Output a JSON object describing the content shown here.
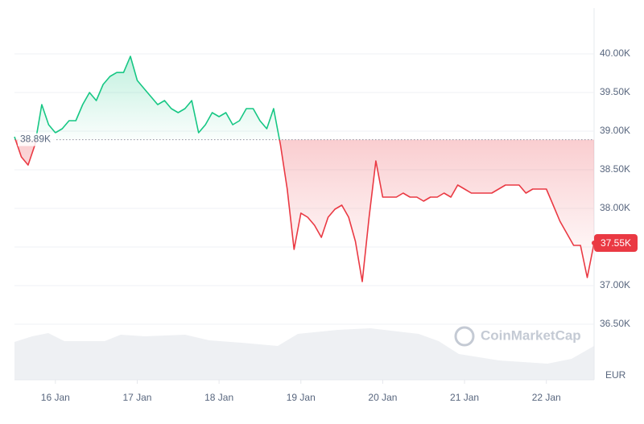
{
  "chart_data": {
    "type": "line",
    "series": [
      {
        "color": "#16c784",
        "color_below": "#ea3943",
        "values": [
          38927,
          38667,
          38562,
          38823,
          39344,
          39083,
          38979,
          39031,
          39135,
          39135,
          39344,
          39500,
          39396,
          39604,
          39708,
          39760,
          39760,
          39969,
          39656,
          39552,
          39448,
          39344,
          39396,
          39292,
          39240,
          39292,
          39396,
          38979,
          39083,
          39240,
          39188,
          39240,
          39083,
          39135,
          39292,
          39292,
          39135,
          39031,
          39292,
          38823,
          38250,
          37469,
          37938,
          37885,
          37781,
          37625,
          37885,
          37990,
          38042,
          37885,
          37573,
          37052,
          37885,
          38615,
          38146,
          38146,
          38146,
          38198,
          38146,
          38146,
          38094,
          38146,
          38146,
          38198,
          38146,
          38302,
          38250,
          38198,
          38198,
          38198,
          38198,
          38250,
          38302,
          38302,
          38302,
          38198,
          38250,
          38250,
          38250,
          38042,
          37833,
          37677,
          37521,
          37521,
          37104,
          37552
        ]
      }
    ],
    "baseline": 38890,
    "baseline_label": "38.89K",
    "last_label": "37.55K",
    "xlim": [
      0,
      85
    ],
    "xticks": [
      {
        "value": 6,
        "label": "16 Jan"
      },
      {
        "value": 18,
        "label": "17 Jan"
      },
      {
        "value": 30,
        "label": "18 Jan"
      },
      {
        "value": 42,
        "label": "19 Jan"
      },
      {
        "value": 54,
        "label": "20 Jan"
      },
      {
        "value": 66,
        "label": "21 Jan"
      },
      {
        "value": 78,
        "label": "22 Jan"
      }
    ],
    "ylim": [
      35781,
      40594
    ],
    "yticks": [
      {
        "value": 36500,
        "label": "36.50K"
      },
      {
        "value": 37000,
        "label": "37.00K"
      },
      {
        "value": 37500,
        "label": "37.50K"
      },
      {
        "value": 38000,
        "label": "38.00K"
      },
      {
        "value": 38500,
        "label": "38.50K"
      },
      {
        "value": 39000,
        "label": "39.00K"
      },
      {
        "value": 39500,
        "label": "39.50K"
      },
      {
        "value": 40000,
        "label": "40.00K"
      }
    ],
    "y_unit": "EUR",
    "watermark": "CoinMarketCap",
    "grid": true
  }
}
